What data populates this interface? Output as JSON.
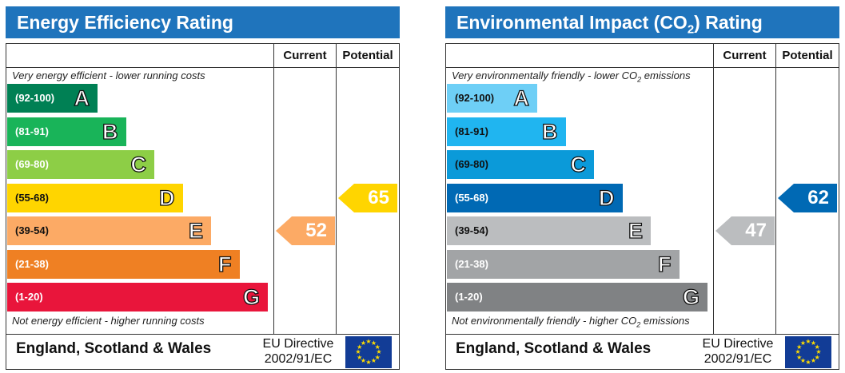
{
  "columns": {
    "current": "Current",
    "potential": "Potential"
  },
  "footer": {
    "region": "England, Scotland & Wales",
    "directive_line1": "EU Directive",
    "directive_line2": "2002/91/EC"
  },
  "chart_data": [
    {
      "type": "bar",
      "title": "Energy Efficiency Rating",
      "top_caption": "Very energy efficient - lower running costs",
      "bottom_caption": "Not energy efficient - higher running costs",
      "bands": [
        {
          "letter": "A",
          "range": "(92-100)",
          "color": "#008054"
        },
        {
          "letter": "B",
          "range": "(81-91)",
          "color": "#19b459"
        },
        {
          "letter": "C",
          "range": "(69-80)",
          "color": "#8dce46"
        },
        {
          "letter": "D",
          "range": "(55-68)",
          "color": "#ffd500"
        },
        {
          "letter": "E",
          "range": "(39-54)",
          "color": "#fcaa65"
        },
        {
          "letter": "F",
          "range": "(21-38)",
          "color": "#ef8023"
        },
        {
          "letter": "G",
          "range": "(1-20)",
          "color": "#e9153b"
        }
      ],
      "current": {
        "value": 52,
        "band": "E",
        "color": "#fcaa65"
      },
      "potential": {
        "value": 65,
        "band": "D",
        "color": "#ffd500"
      }
    },
    {
      "type": "bar",
      "title": "Environmental Impact (CO",
      "title_sub": "2",
      "title_end": ") Rating",
      "top_caption": "Very environmentally friendly - lower CO",
      "top_caption_sub": "2",
      "top_caption_end": " emissions",
      "bottom_caption": "Not environmentally friendly - higher CO",
      "bottom_caption_sub": "2",
      "bottom_caption_end": " emissions",
      "bands": [
        {
          "letter": "A",
          "range": "(92-100)",
          "color": "#6ecff6"
        },
        {
          "letter": "B",
          "range": "(81-91)",
          "color": "#20b5f0"
        },
        {
          "letter": "C",
          "range": "(69-80)",
          "color": "#0b9ad9"
        },
        {
          "letter": "D",
          "range": "(55-68)",
          "color": "#0069b4"
        },
        {
          "letter": "E",
          "range": "(39-54)",
          "color": "#bbbdbf"
        },
        {
          "letter": "F",
          "range": "(21-38)",
          "color": "#a2a4a6"
        },
        {
          "letter": "G",
          "range": "(1-20)",
          "color": "#808284"
        }
      ],
      "current": {
        "value": 47,
        "band": "E",
        "color": "#bbbdbf"
      },
      "potential": {
        "value": 62,
        "band": "D",
        "color": "#0069b4"
      }
    }
  ]
}
